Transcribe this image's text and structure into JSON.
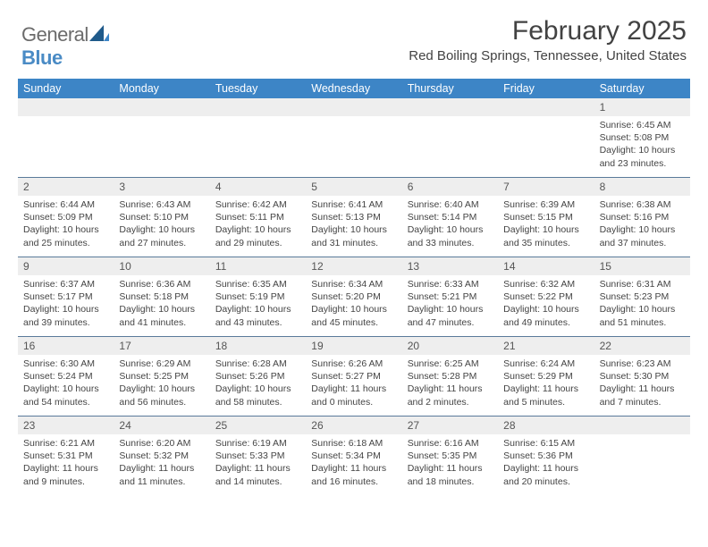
{
  "logo": {
    "word1": "General",
    "word2": "Blue"
  },
  "header": {
    "month_title": "February 2025",
    "location": "Red Boiling Springs, Tennessee, United States"
  },
  "colors": {
    "header_bg": "#3d85c6",
    "header_text": "#ffffff",
    "daynum_bg": "#eeeeee",
    "row_divider": "#5a7a9a",
    "logo_gray": "#6b6b6b",
    "logo_blue": "#4a8bc5"
  },
  "day_names": [
    "Sunday",
    "Monday",
    "Tuesday",
    "Wednesday",
    "Thursday",
    "Friday",
    "Saturday"
  ],
  "weeks": [
    [
      {
        "n": "",
        "sr": "",
        "ss": "",
        "dl": ""
      },
      {
        "n": "",
        "sr": "",
        "ss": "",
        "dl": ""
      },
      {
        "n": "",
        "sr": "",
        "ss": "",
        "dl": ""
      },
      {
        "n": "",
        "sr": "",
        "ss": "",
        "dl": ""
      },
      {
        "n": "",
        "sr": "",
        "ss": "",
        "dl": ""
      },
      {
        "n": "",
        "sr": "",
        "ss": "",
        "dl": ""
      },
      {
        "n": "1",
        "sr": "Sunrise: 6:45 AM",
        "ss": "Sunset: 5:08 PM",
        "dl": "Daylight: 10 hours and 23 minutes."
      }
    ],
    [
      {
        "n": "2",
        "sr": "Sunrise: 6:44 AM",
        "ss": "Sunset: 5:09 PM",
        "dl": "Daylight: 10 hours and 25 minutes."
      },
      {
        "n": "3",
        "sr": "Sunrise: 6:43 AM",
        "ss": "Sunset: 5:10 PM",
        "dl": "Daylight: 10 hours and 27 minutes."
      },
      {
        "n": "4",
        "sr": "Sunrise: 6:42 AM",
        "ss": "Sunset: 5:11 PM",
        "dl": "Daylight: 10 hours and 29 minutes."
      },
      {
        "n": "5",
        "sr": "Sunrise: 6:41 AM",
        "ss": "Sunset: 5:13 PM",
        "dl": "Daylight: 10 hours and 31 minutes."
      },
      {
        "n": "6",
        "sr": "Sunrise: 6:40 AM",
        "ss": "Sunset: 5:14 PM",
        "dl": "Daylight: 10 hours and 33 minutes."
      },
      {
        "n": "7",
        "sr": "Sunrise: 6:39 AM",
        "ss": "Sunset: 5:15 PM",
        "dl": "Daylight: 10 hours and 35 minutes."
      },
      {
        "n": "8",
        "sr": "Sunrise: 6:38 AM",
        "ss": "Sunset: 5:16 PM",
        "dl": "Daylight: 10 hours and 37 minutes."
      }
    ],
    [
      {
        "n": "9",
        "sr": "Sunrise: 6:37 AM",
        "ss": "Sunset: 5:17 PM",
        "dl": "Daylight: 10 hours and 39 minutes."
      },
      {
        "n": "10",
        "sr": "Sunrise: 6:36 AM",
        "ss": "Sunset: 5:18 PM",
        "dl": "Daylight: 10 hours and 41 minutes."
      },
      {
        "n": "11",
        "sr": "Sunrise: 6:35 AM",
        "ss": "Sunset: 5:19 PM",
        "dl": "Daylight: 10 hours and 43 minutes."
      },
      {
        "n": "12",
        "sr": "Sunrise: 6:34 AM",
        "ss": "Sunset: 5:20 PM",
        "dl": "Daylight: 10 hours and 45 minutes."
      },
      {
        "n": "13",
        "sr": "Sunrise: 6:33 AM",
        "ss": "Sunset: 5:21 PM",
        "dl": "Daylight: 10 hours and 47 minutes."
      },
      {
        "n": "14",
        "sr": "Sunrise: 6:32 AM",
        "ss": "Sunset: 5:22 PM",
        "dl": "Daylight: 10 hours and 49 minutes."
      },
      {
        "n": "15",
        "sr": "Sunrise: 6:31 AM",
        "ss": "Sunset: 5:23 PM",
        "dl": "Daylight: 10 hours and 51 minutes."
      }
    ],
    [
      {
        "n": "16",
        "sr": "Sunrise: 6:30 AM",
        "ss": "Sunset: 5:24 PM",
        "dl": "Daylight: 10 hours and 54 minutes."
      },
      {
        "n": "17",
        "sr": "Sunrise: 6:29 AM",
        "ss": "Sunset: 5:25 PM",
        "dl": "Daylight: 10 hours and 56 minutes."
      },
      {
        "n": "18",
        "sr": "Sunrise: 6:28 AM",
        "ss": "Sunset: 5:26 PM",
        "dl": "Daylight: 10 hours and 58 minutes."
      },
      {
        "n": "19",
        "sr": "Sunrise: 6:26 AM",
        "ss": "Sunset: 5:27 PM",
        "dl": "Daylight: 11 hours and 0 minutes."
      },
      {
        "n": "20",
        "sr": "Sunrise: 6:25 AM",
        "ss": "Sunset: 5:28 PM",
        "dl": "Daylight: 11 hours and 2 minutes."
      },
      {
        "n": "21",
        "sr": "Sunrise: 6:24 AM",
        "ss": "Sunset: 5:29 PM",
        "dl": "Daylight: 11 hours and 5 minutes."
      },
      {
        "n": "22",
        "sr": "Sunrise: 6:23 AM",
        "ss": "Sunset: 5:30 PM",
        "dl": "Daylight: 11 hours and 7 minutes."
      }
    ],
    [
      {
        "n": "23",
        "sr": "Sunrise: 6:21 AM",
        "ss": "Sunset: 5:31 PM",
        "dl": "Daylight: 11 hours and 9 minutes."
      },
      {
        "n": "24",
        "sr": "Sunrise: 6:20 AM",
        "ss": "Sunset: 5:32 PM",
        "dl": "Daylight: 11 hours and 11 minutes."
      },
      {
        "n": "25",
        "sr": "Sunrise: 6:19 AM",
        "ss": "Sunset: 5:33 PM",
        "dl": "Daylight: 11 hours and 14 minutes."
      },
      {
        "n": "26",
        "sr": "Sunrise: 6:18 AM",
        "ss": "Sunset: 5:34 PM",
        "dl": "Daylight: 11 hours and 16 minutes."
      },
      {
        "n": "27",
        "sr": "Sunrise: 6:16 AM",
        "ss": "Sunset: 5:35 PM",
        "dl": "Daylight: 11 hours and 18 minutes."
      },
      {
        "n": "28",
        "sr": "Sunrise: 6:15 AM",
        "ss": "Sunset: 5:36 PM",
        "dl": "Daylight: 11 hours and 20 minutes."
      },
      {
        "n": "",
        "sr": "",
        "ss": "",
        "dl": ""
      }
    ]
  ]
}
